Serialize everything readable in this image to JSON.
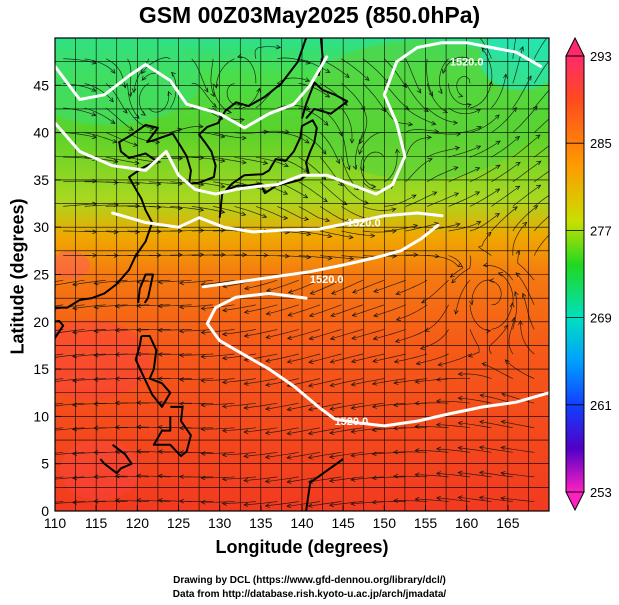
{
  "title": "GSM 00Z03May2025 (850.0hPa)",
  "xlabel": "Longitude (degrees)",
  "ylabel": "Latitude  (degrees)",
  "credits": [
    "Drawing by DCL (https://www.gfd-dennou.org/library/dcl/)",
    "Data from http://database.rish.kyoto-u.ac.jp/arch/jmadata/"
  ],
  "chart_data": {
    "type": "heatmap",
    "x_ticks": [
      110,
      115,
      120,
      125,
      130,
      135,
      140,
      145,
      150,
      155,
      160,
      165
    ],
    "y_ticks": [
      0,
      5,
      10,
      15,
      20,
      25,
      30,
      35,
      40,
      45
    ],
    "xlim": [
      110,
      170
    ],
    "ylim": [
      0,
      50
    ],
    "colorbar": {
      "labels": [
        293,
        285,
        277,
        269,
        261,
        253
      ],
      "range": [
        253,
        293
      ],
      "colors": [
        "#ff2a6a",
        "#ff3a2a",
        "#ff8800",
        "#ffe000",
        "#a6e600",
        "#00d200",
        "#00e6b4",
        "#00b4ff",
        "#0050ff",
        "#1a1ad0",
        "#6a00c8",
        "#ff00b4"
      ]
    },
    "contour_labels": [
      "1520.0",
      "1520.0",
      "1520.0",
      "1520.0"
    ],
    "contour_label_positions": [
      {
        "lon": 160,
        "lat": 47.5
      },
      {
        "lon": 147.5,
        "lat": 30.5
      },
      {
        "lon": 143,
        "lat": 24.5
      },
      {
        "lon": 146,
        "lat": 9.5
      }
    ]
  }
}
